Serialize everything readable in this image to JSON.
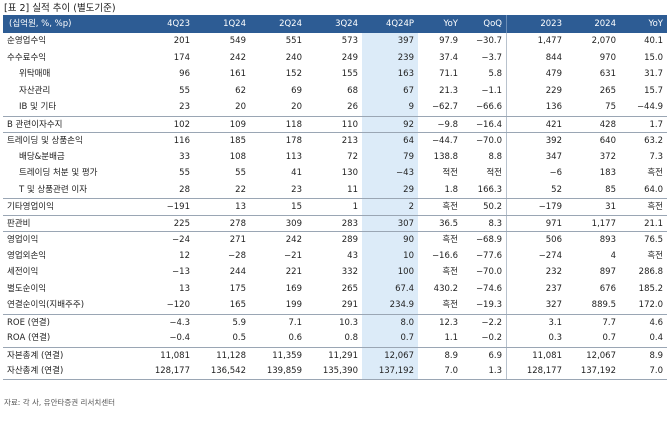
{
  "title": "[표 2] 실적 추이 (별도기준)",
  "header": {
    "unit": "(십억원, %, %p)",
    "cols": [
      "4Q23",
      "1Q24",
      "2Q24",
      "3Q24",
      "4Q24P",
      "YoY",
      "QoQ",
      "2023",
      "2024",
      "YoY"
    ]
  },
  "rows": [
    {
      "label": "순영업수익",
      "values": [
        "201",
        "549",
        "551",
        "573",
        "397",
        "97.9",
        "−30.7",
        "1,477",
        "2,070",
        "40.1"
      ]
    },
    {
      "label": "수수료수익",
      "values": [
        "174",
        "242",
        "240",
        "249",
        "239",
        "37.4",
        "−3.7",
        "844",
        "970",
        "15.0"
      ]
    },
    {
      "label": "위탁매매",
      "values": [
        "96",
        "161",
        "152",
        "155",
        "163",
        "71.1",
        "5.8",
        "479",
        "631",
        "31.7"
      ]
    },
    {
      "label": "자산관리",
      "values": [
        "55",
        "62",
        "69",
        "68",
        "67",
        "21.3",
        "−1.1",
        "229",
        "265",
        "15.7"
      ]
    },
    {
      "label": "IB 및 기타",
      "values": [
        "23",
        "20",
        "20",
        "26",
        "9",
        "−62.7",
        "−66.6",
        "136",
        "75",
        "−44.9"
      ]
    },
    {
      "label": "B 관련이자수지",
      "values": [
        "102",
        "109",
        "118",
        "110",
        "92",
        "−9.8",
        "−16.4",
        "421",
        "428",
        "1.7"
      ]
    },
    {
      "label": "트레이딩 및 상품손익",
      "values": [
        "116",
        "185",
        "178",
        "213",
        "64",
        "−44.7",
        "−70.0",
        "392",
        "640",
        "63.2"
      ]
    },
    {
      "label": "배당&분배금",
      "values": [
        "33",
        "108",
        "113",
        "72",
        "79",
        "138.8",
        "8.8",
        "347",
        "372",
        "7.3"
      ]
    },
    {
      "label": "트레이딩 처분 및 평가",
      "values": [
        "55",
        "55",
        "41",
        "130",
        "−43",
        "적전",
        "적전",
        "−6",
        "183",
        "흑전"
      ]
    },
    {
      "label": "T 및 상품관련 이자",
      "values": [
        "28",
        "22",
        "23",
        "11",
        "29",
        "1.8",
        "166.3",
        "52",
        "85",
        "64.0"
      ]
    },
    {
      "label": "기타영업이익",
      "values": [
        "−191",
        "13",
        "15",
        "1",
        "2",
        "흑전",
        "50.2",
        "−179",
        "31",
        "흑전"
      ]
    },
    {
      "label": "판관비",
      "values": [
        "225",
        "278",
        "309",
        "283",
        "307",
        "36.5",
        "8.3",
        "971",
        "1,177",
        "21.1"
      ]
    },
    {
      "label": "영업이익",
      "values": [
        "−24",
        "271",
        "242",
        "289",
        "90",
        "흑전",
        "−68.9",
        "506",
        "893",
        "76.5"
      ]
    },
    {
      "label": "영업외손익",
      "values": [
        "12",
        "−28",
        "−21",
        "43",
        "10",
        "−16.6",
        "−77.6",
        "−274",
        "4",
        "흑전"
      ]
    },
    {
      "label": "세전이익",
      "values": [
        "−13",
        "244",
        "221",
        "332",
        "100",
        "흑전",
        "−70.0",
        "232",
        "897",
        "286.8"
      ]
    },
    {
      "label": "별도순이익",
      "values": [
        "13",
        "175",
        "169",
        "265",
        "67.4",
        "430.2",
        "−74.6",
        "237",
        "676",
        "185.2"
      ]
    },
    {
      "label": "연결순이익(지배주주)",
      "values": [
        "−120",
        "165",
        "199",
        "291",
        "234.9",
        "흑전",
        "−19.3",
        "327",
        "889.5",
        "172.0"
      ]
    },
    {
      "label": "ROE (연결)",
      "values": [
        "−4.3",
        "5.9",
        "7.1",
        "10.3",
        "8.0",
        "12.3",
        "−2.2",
        "3.1",
        "7.7",
        "4.6"
      ]
    },
    {
      "label": "ROA (연결)",
      "values": [
        "−0.4",
        "0.5",
        "0.6",
        "0.8",
        "0.7",
        "1.1",
        "−0.2",
        "0.3",
        "0.7",
        "0.4"
      ]
    },
    {
      "label": "자본총계 (연결)",
      "values": [
        "11,081",
        "11,128",
        "11,359",
        "11,291",
        "12,067",
        "8.9",
        "6.9",
        "11,081",
        "12,067",
        "8.9"
      ]
    },
    {
      "label": "자산총계 (연결)",
      "values": [
        "128,177",
        "136,542",
        "139,859",
        "135,390",
        "137,192",
        "7.0",
        "1.3",
        "128,177",
        "137,192",
        "7.0"
      ]
    }
  ],
  "source": "자료: 각 사, 유안타증권 리서치센터"
}
